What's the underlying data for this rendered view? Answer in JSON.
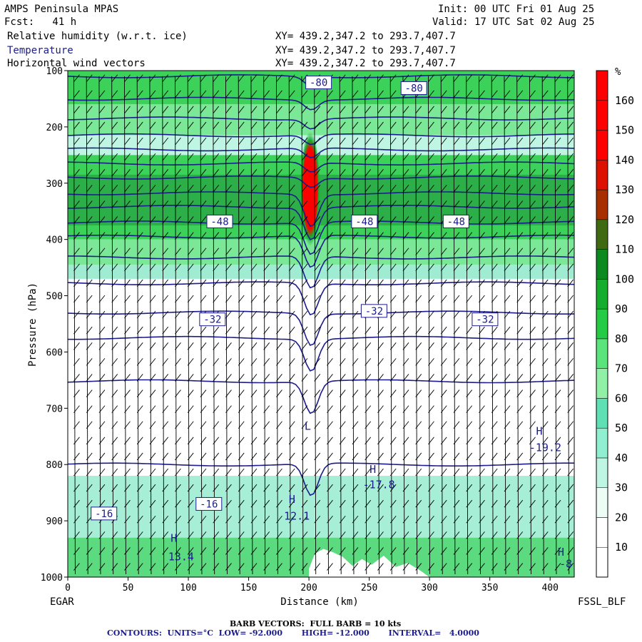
{
  "header": {
    "model": "AMPS Peninsula MPAS",
    "init": "Init: 00 UTC Fri 01 Aug 25",
    "fcst": "Fcst:   41 h",
    "valid": "Valid: 17 UTC Sat 02 Aug 25",
    "field1": "Relative humidity (w.r.t. ice)",
    "field2": "Temperature",
    "field3": "Horizontal wind vectors",
    "xy1": "XY= 439.2,347.2 to 293.7,407.7",
    "xy2": "XY= 439.2,347.2 to 293.7,407.7",
    "xy3": "XY= 439.2,347.2 to 293.7,407.7"
  },
  "footer": {
    "left_station": "EGAR",
    "right_station": "FSSL_BLF",
    "barb_note": "BARB VECTORS:  FULL BARB = 10 kts",
    "contour_note": "CONTOURS:  UNITS=°C  LOW= -92.000       HIGH= -12.000       INTERVAL=   4.0000"
  },
  "colors": {
    "contour": "#1c1c8c",
    "dark_green": "#1f8f3a",
    "green": "#3cd25a",
    "light_green": "#7ae896",
    "teal": "#5fe0b4",
    "pale_teal": "#bff5e3",
    "red": "#ff0000"
  },
  "chart_data": {
    "type": "heatmap",
    "xlabel": "Distance (km)",
    "ylabel": "Pressure (hPa)",
    "xlim": [
      0,
      420
    ],
    "ylim": [
      1000,
      100
    ],
    "x_ticks": [
      0,
      50,
      100,
      150,
      200,
      250,
      300,
      350,
      400
    ],
    "x_tick_labels": [
      "0",
      "50",
      "100",
      "150",
      "200",
      "250",
      "300",
      "350",
      "400"
    ],
    "y_ticks": [
      100,
      200,
      300,
      400,
      500,
      600,
      700,
      800,
      900,
      1000
    ],
    "y_tick_labels": [
      "100",
      "200",
      "300",
      "400",
      "500",
      "600",
      "700",
      "800",
      "900",
      "1000"
    ],
    "colorbar": {
      "unit_label": "%",
      "tick_labels": [
        "10",
        "20",
        "30",
        "40",
        "50",
        "60",
        "70",
        "80",
        "90",
        "100",
        "110",
        "120",
        "130",
        "140",
        "150",
        "160"
      ],
      "colors": [
        "#ffffff",
        "#ffffff",
        "#eefcf6",
        "#bff5e3",
        "#8fefd0",
        "#5fe0b4",
        "#8ff0a6",
        "#5be37c",
        "#23cc44",
        "#14ad2e",
        "#0c8a20",
        "#3f6a12",
        "#a83000",
        "#dd1100",
        "#ff0000",
        "#ff0000",
        "#ff0000"
      ]
    },
    "contour_labels": [
      {
        "text": "-80",
        "x": 208,
        "p": 121
      },
      {
        "text": "-80",
        "x": 287,
        "p": 131
      },
      {
        "text": "-48",
        "x": 126,
        "p": 368
      },
      {
        "text": "-48",
        "x": 246,
        "p": 368
      },
      {
        "text": "-48",
        "x": 322,
        "p": 368
      },
      {
        "text": "-32",
        "x": 120,
        "p": 542
      },
      {
        "text": "-32",
        "x": 254,
        "p": 527
      },
      {
        "text": "-32",
        "x": 346,
        "p": 542
      },
      {
        "text": "-16",
        "x": 30,
        "p": 887
      },
      {
        "text": "-16",
        "x": 117,
        "p": 870
      }
    ],
    "extrema_labels": [
      {
        "text": "H",
        "x": 88,
        "p": 937
      },
      {
        "text": "13.4",
        "x": 94,
        "p": 970
      },
      {
        "text": "H",
        "x": 186,
        "p": 868
      },
      {
        "text": "12.1",
        "x": 190,
        "p": 898
      },
      {
        "text": "L",
        "x": 199,
        "p": 738
      },
      {
        "text": "H",
        "x": 253,
        "p": 815
      },
      {
        "text": "-17.8",
        "x": 258,
        "p": 842
      },
      {
        "text": "H",
        "x": 391,
        "p": 747
      },
      {
        "text": "-19.2",
        "x": 396,
        "p": 776
      },
      {
        "text": "H",
        "x": 409,
        "p": 962
      },
      {
        "text": "-8",
        "x": 413,
        "p": 983
      }
    ],
    "isotherms_c": [
      -80,
      -76,
      -72,
      -68,
      -64,
      -60,
      -56,
      -52,
      -48,
      -44,
      -40,
      -36,
      -32,
      -28,
      -24,
      -20,
      -16
    ],
    "barb_note": "full barb = 10 kts"
  }
}
